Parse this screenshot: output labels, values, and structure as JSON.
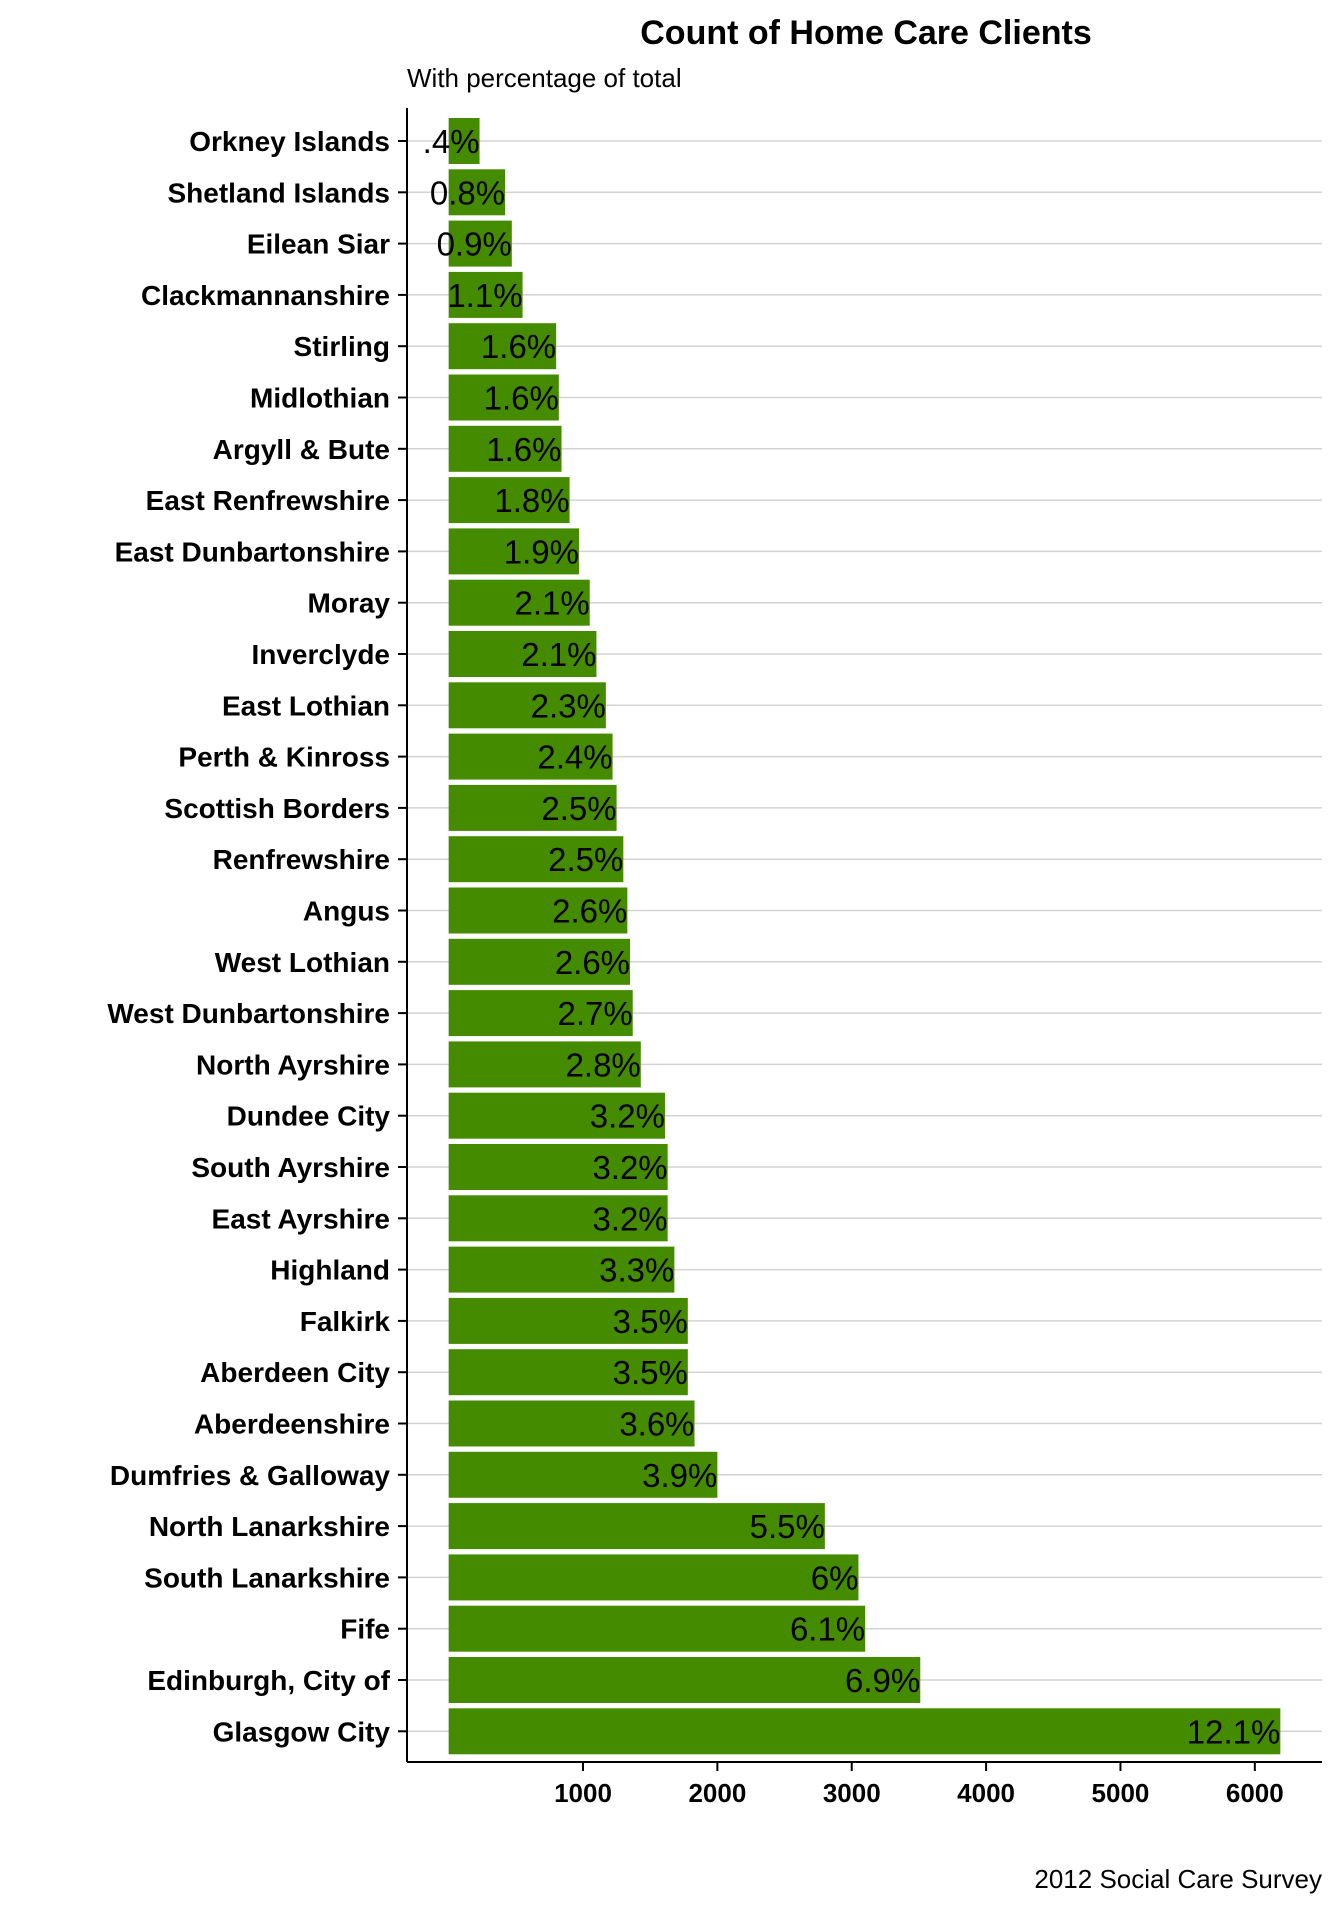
{
  "chart_data": {
    "type": "bar",
    "orientation": "horizontal",
    "title": "Count of Home Care Clients",
    "subtitle": "With percentage of total",
    "caption": "2012 Social Care Survey",
    "bar_color": "#458b00",
    "grid": "major horizontal lines",
    "xlim": [
      -310,
      6500
    ],
    "x_ticks": [
      1000,
      2000,
      3000,
      4000,
      5000,
      6000
    ],
    "categories": [
      "Orkney Islands",
      "Shetland Islands",
      "Eilean Siar",
      "Clackmannanshire",
      "Stirling",
      "Midlothian",
      "Argyll & Bute",
      "East Renfrewshire",
      "East Dunbartonshire",
      "Moray",
      "Inverclyde",
      "East Lothian",
      "Perth & Kinross",
      "Scottish Borders",
      "Renfrewshire",
      "Angus",
      "West Lothian",
      "West Dunbartonshire",
      "North Ayrshire",
      "Dundee City",
      "South Ayrshire",
      "East Ayrshire",
      "Highland",
      "Falkirk",
      "Aberdeen City",
      "Aberdeenshire",
      "Dumfries & Galloway",
      "North Lanarkshire",
      "South Lanarkshire",
      "Fife",
      "Edinburgh, City of",
      "Glasgow City"
    ],
    "values": [
      230,
      420,
      470,
      550,
      800,
      820,
      840,
      900,
      970,
      1050,
      1100,
      1170,
      1220,
      1250,
      1300,
      1330,
      1350,
      1370,
      1430,
      1610,
      1630,
      1630,
      1680,
      1780,
      1780,
      1830,
      2000,
      2800,
      3050,
      3100,
      3510,
      6190
    ],
    "labels": [
      ".4%",
      "0.8%",
      "0.9%",
      "1.1%",
      "1.6%",
      "1.6%",
      "1.6%",
      "1.8%",
      "1.9%",
      "2.1%",
      "2.1%",
      "2.3%",
      "2.4%",
      "2.5%",
      "2.5%",
      "2.6%",
      "2.6%",
      "2.7%",
      "2.8%",
      "3.2%",
      "3.2%",
      "3.2%",
      "3.3%",
      "3.5%",
      "3.5%",
      "3.6%",
      "3.9%",
      "5.5%",
      "6%",
      "6.1%",
      "6.9%",
      "12.1%"
    ]
  }
}
